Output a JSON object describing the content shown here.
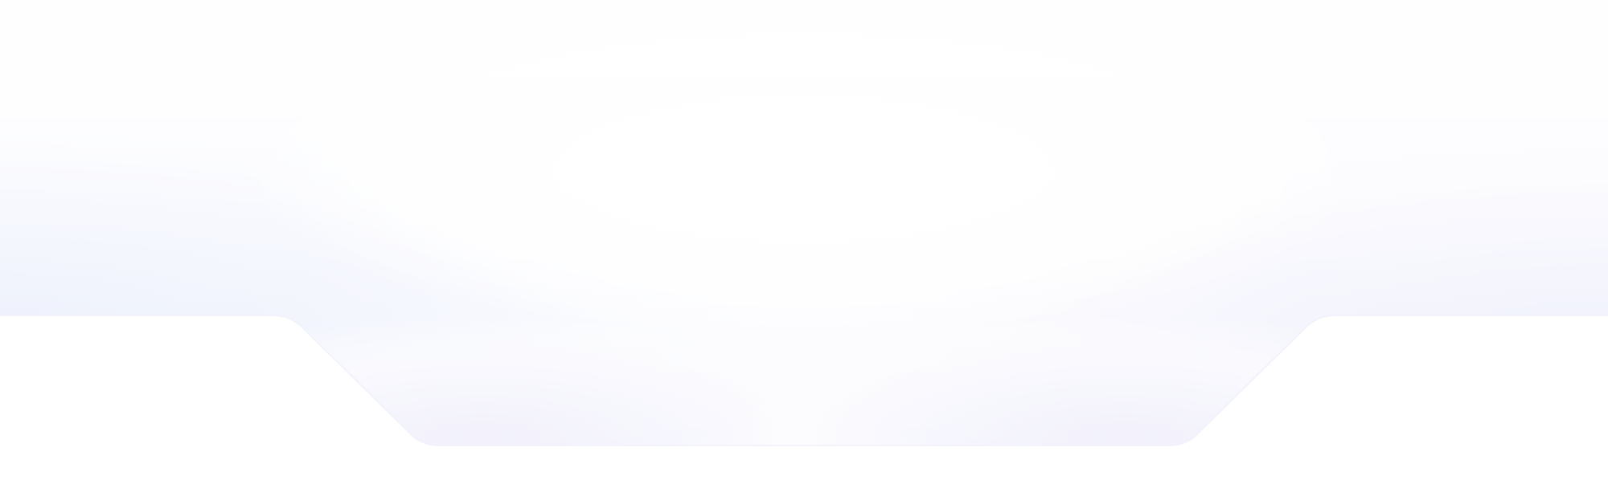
{
  "colors": {
    "background": "#ffffff",
    "glow_left": "#eef2fd",
    "glow_right": "#f0f1fc",
    "glow_center": "#f6f5fd"
  }
}
